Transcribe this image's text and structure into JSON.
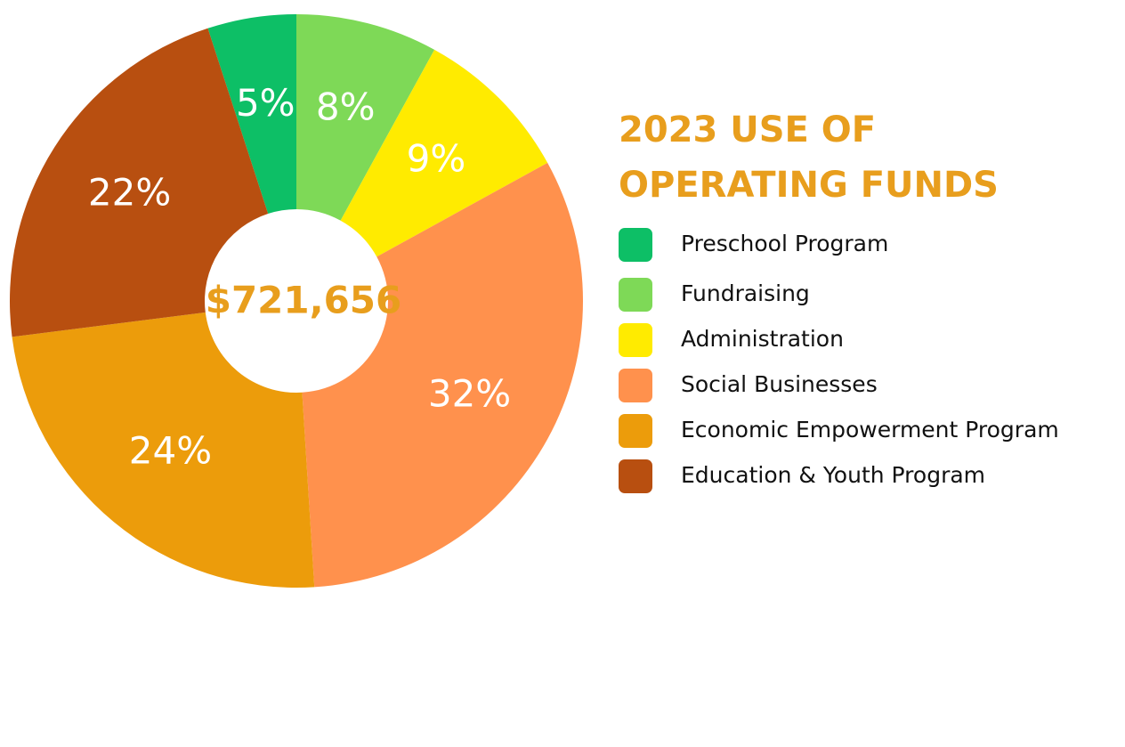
{
  "chart_data": {
    "type": "pie",
    "title": [
      "2023 USE OF",
      "OPERATING FUNDS"
    ],
    "center_label": "$721,656",
    "categories": [
      "Preschool Program",
      "Fundraising",
      "Administration",
      "Social Businesses",
      "Economic Empowerment Program",
      "Education & Youth Program"
    ],
    "values": [
      5,
      8,
      9,
      32,
      24,
      22
    ],
    "value_labels": [
      "5%",
      "8%",
      "9%",
      "32%",
      "24%",
      "22%"
    ],
    "colors": [
      "#0dbf66",
      "#7ed957",
      "#ffeb00",
      "#ff914d",
      "#ec9c0b",
      "#b84f10"
    ]
  }
}
